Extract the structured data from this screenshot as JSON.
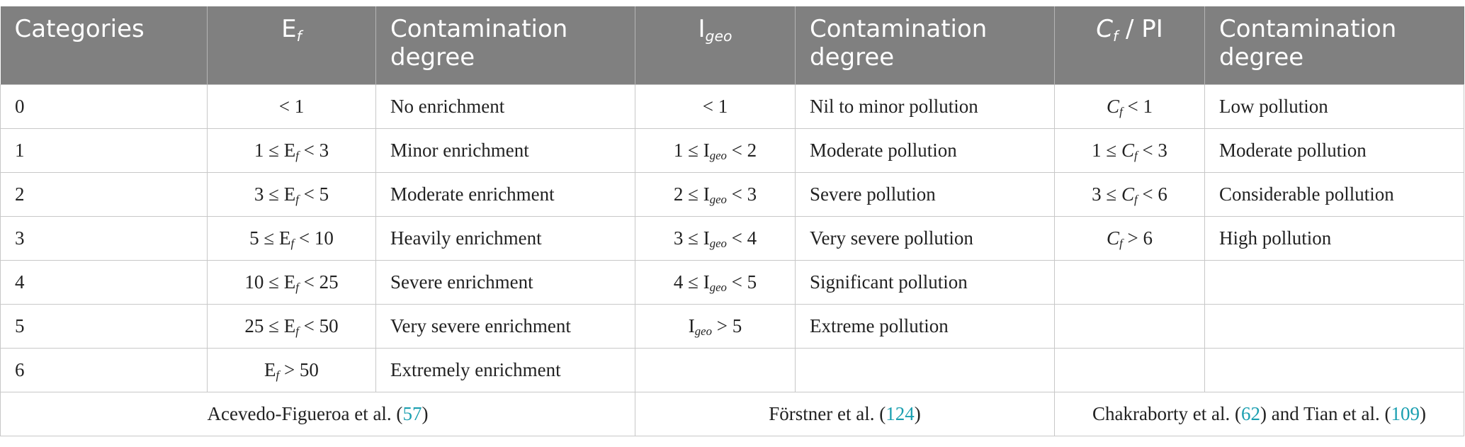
{
  "header": {
    "categories": "Categories",
    "ef_symbol": "E",
    "ef_sub": "f",
    "col3": "Contamination degree",
    "igeo_symbol": "I",
    "igeo_sub": "geo",
    "col5": "Contamination degree",
    "cf_symbol": "C",
    "cf_sub": "f",
    "cf_rest": " / PI",
    "col7": "Contamination degree"
  },
  "rows": [
    {
      "cat": "0",
      "ef_pre": "< 1",
      "ef_sym": "",
      "ef_sub": "",
      "ef_post": "",
      "ef_degree": "No enrichment",
      "ig_pre": "< 1",
      "ig_sym": "",
      "ig_sub": "",
      "ig_post": "",
      "ig_degree": "Nil to minor pollution",
      "cf_pre": "",
      "cf_sym": "C",
      "cf_sub": "f",
      "cf_post": " < 1",
      "cf_degree": "Low pollution"
    },
    {
      "cat": "1",
      "ef_pre": "1 ≤ ",
      "ef_sym": "E",
      "ef_sub": "f",
      "ef_post": " < 3",
      "ef_degree": "Minor enrichment",
      "ig_pre": "1 ≤ ",
      "ig_sym": "I",
      "ig_sub": "geo",
      "ig_post": " < 2",
      "ig_degree": "Moderate pollution",
      "cf_pre": "1 ≤ ",
      "cf_sym": "C",
      "cf_sub": "f",
      "cf_post": " < 3",
      "cf_degree": "Moderate pollution"
    },
    {
      "cat": "2",
      "ef_pre": "3 ≤ ",
      "ef_sym": "E",
      "ef_sub": "f",
      "ef_post": " < 5",
      "ef_degree": "Moderate enrichment",
      "ig_pre": "2 ≤ ",
      "ig_sym": "I",
      "ig_sub": "geo",
      "ig_post": " < 3",
      "ig_degree": "Severe pollution",
      "cf_pre": "3 ≤ ",
      "cf_sym": "C",
      "cf_sub": "f",
      "cf_post": " < 6",
      "cf_degree": "Considerable pollution"
    },
    {
      "cat": "3",
      "ef_pre": "5 ≤ ",
      "ef_sym": "E",
      "ef_sub": "f",
      "ef_post": " < 10",
      "ef_degree": "Heavily enrichment",
      "ig_pre": "3 ≤ ",
      "ig_sym": "I",
      "ig_sub": "geo",
      "ig_post": " < 4",
      "ig_degree": "Very severe pollution",
      "cf_pre": "",
      "cf_sym": "C",
      "cf_sub": "f",
      "cf_post": " > 6",
      "cf_degree": "High pollution"
    },
    {
      "cat": "4",
      "ef_pre": "10 ≤ ",
      "ef_sym": "E",
      "ef_sub": "f",
      "ef_post": " < 25",
      "ef_degree": "Severe enrichment",
      "ig_pre": "4 ≤ ",
      "ig_sym": "I",
      "ig_sub": "geo",
      "ig_post": " < 5",
      "ig_degree": "Significant pollution",
      "cf_pre": "",
      "cf_sym": "",
      "cf_sub": "",
      "cf_post": "",
      "cf_degree": ""
    },
    {
      "cat": "5",
      "ef_pre": "25 ≤ ",
      "ef_sym": "E",
      "ef_sub": "f",
      "ef_post": " < 50",
      "ef_degree": "Very severe enrichment",
      "ig_pre": "",
      "ig_sym": "I",
      "ig_sub": "geo",
      "ig_post": " > 5",
      "ig_degree": "Extreme pollution",
      "cf_pre": "",
      "cf_sym": "",
      "cf_sub": "",
      "cf_post": "",
      "cf_degree": ""
    },
    {
      "cat": "6",
      "ef_pre": "",
      "ef_sym": "E",
      "ef_sub": "f",
      "ef_post": " > 50",
      "ef_degree": "Extremely enrichment",
      "ig_pre": "",
      "ig_sym": "",
      "ig_sub": "",
      "ig_post": "",
      "ig_degree": "",
      "cf_pre": "",
      "cf_sym": "",
      "cf_sub": "",
      "cf_post": "",
      "cf_degree": ""
    }
  ],
  "references": {
    "ef": {
      "text_before": "Acevedo-Figueroa et al. (",
      "link": "57",
      "text_after": ")"
    },
    "igeo": {
      "text_before": "Förstner et al. (",
      "link": "124",
      "text_after": ")"
    },
    "cf": {
      "text_before": "Chakraborty et al. (",
      "link1": "62",
      "text_middle": ") and Tian et al. (",
      "link2": "109",
      "text_after": ")"
    }
  },
  "colors": {
    "header_bg": "#808080",
    "header_text": "#ffffff",
    "link": "#1a9fb0",
    "border": "#c8c8c8"
  }
}
